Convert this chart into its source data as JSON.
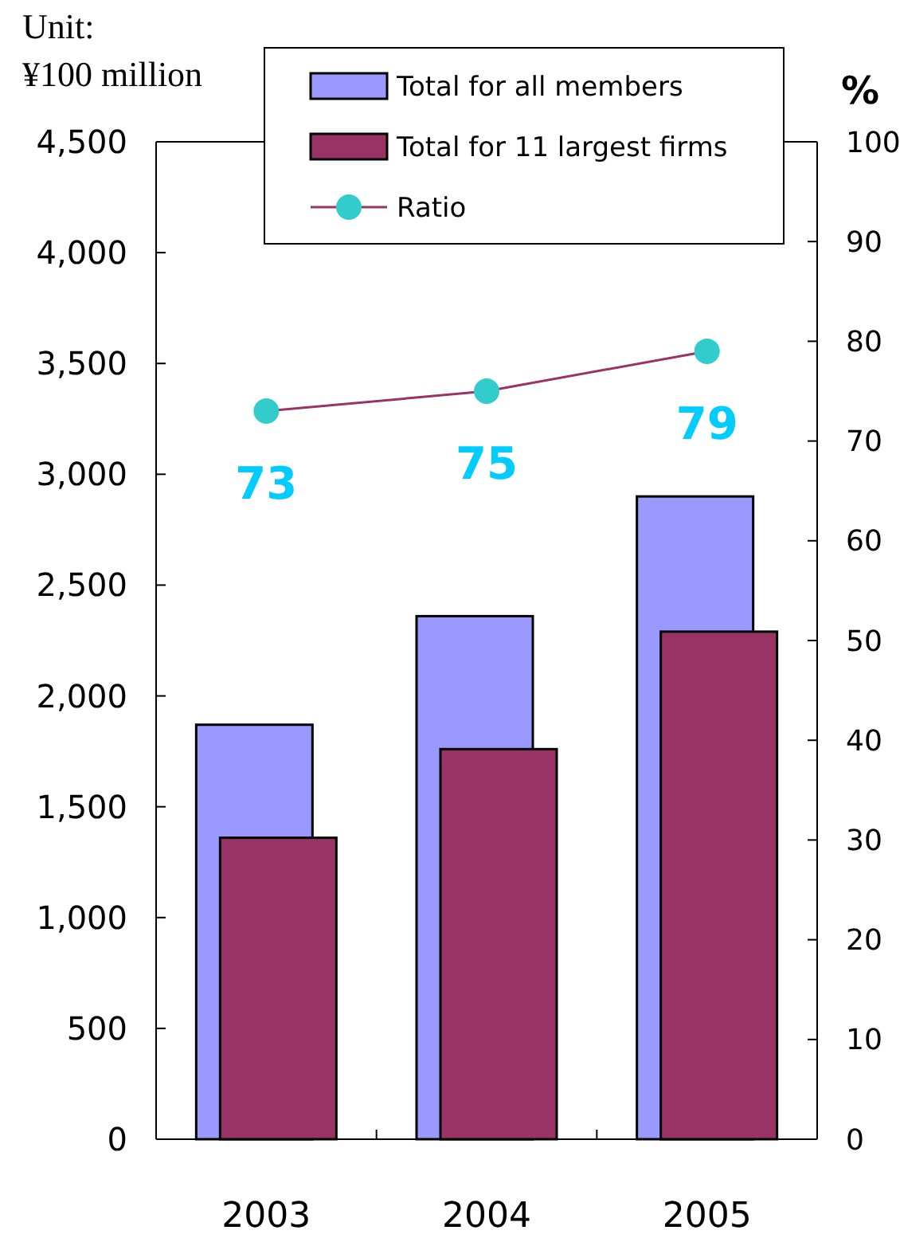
{
  "chart_data": {
    "type": "bar",
    "ylabel": "Unit:\n¥100 million",
    "y2label": "%",
    "categories": [
      "2003",
      "2004",
      "2005"
    ],
    "series": [
      {
        "name": "Total for all members",
        "color": "#9999ff",
        "values": [
          1870,
          2360,
          2900
        ]
      },
      {
        "name": "Total for 11 largest firms",
        "color": "#993366",
        "values": [
          1360,
          1760,
          2290
        ]
      },
      {
        "name": "Ratio",
        "type": "line",
        "axis": "y2",
        "color": "#33cccc",
        "values": [
          73,
          75,
          79
        ],
        "value_labels": [
          "73",
          "75",
          "79"
        ],
        "marker": "circle"
      }
    ],
    "ylim": [
      0,
      4500
    ],
    "yticks": [
      {
        "value": 0,
        "label": "0"
      },
      {
        "value": 500,
        "label": "500"
      },
      {
        "value": 1000,
        "label": "1,000"
      },
      {
        "value": 1500,
        "label": "1,500"
      },
      {
        "value": 2000,
        "label": "2,000"
      },
      {
        "value": 2500,
        "label": "2,500"
      },
      {
        "value": 3000,
        "label": "3,000"
      },
      {
        "value": 3500,
        "label": "3,500"
      },
      {
        "value": 4000,
        "label": "4,000"
      },
      {
        "value": 4500,
        "label": "4,500"
      }
    ],
    "y2lim": [
      0,
      100
    ],
    "y2ticks": [
      0,
      10,
      20,
      30,
      40,
      50,
      60,
      70,
      80,
      90,
      100
    ],
    "grid": false,
    "legend": "top"
  }
}
